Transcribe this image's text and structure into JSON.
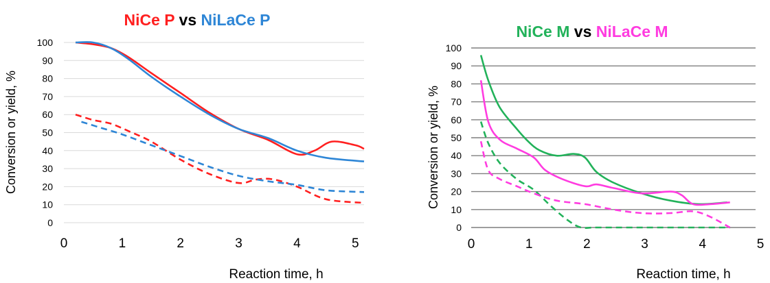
{
  "chart_data": [
    {
      "type": "line",
      "title_parts": [
        {
          "text": "NiCe P",
          "color": "#ff1f1f"
        },
        {
          "text": " vs ",
          "color": "#000000"
        },
        {
          "text": "NiLaCe P",
          "color": "#2e86d6"
        }
      ],
      "xlabel": "Reaction time, h",
      "ylabel": "Conversion or yield, %",
      "xlim": [
        0,
        5.15
      ],
      "ylim": [
        0,
        100
      ],
      "xticks": [
        "0",
        "1",
        "2",
        "3",
        "4",
        "5"
      ],
      "yticks": [
        "0",
        "10",
        "20",
        "30",
        "40",
        "50",
        "60",
        "70",
        "80",
        "90",
        "100"
      ],
      "grid": "horizontal-light",
      "series": [
        {
          "color": "#ff1f1f",
          "style": "solid",
          "x": [
            0.2,
            0.5,
            0.8,
            1.1,
            1.5,
            2.0,
            2.5,
            3.0,
            3.5,
            4.0,
            4.3,
            4.6,
            5.0,
            5.15
          ],
          "y": [
            100,
            99,
            97,
            92,
            83,
            72,
            61,
            52,
            46,
            38,
            40,
            45,
            43,
            41
          ]
        },
        {
          "color": "#2e86d6",
          "style": "solid",
          "x": [
            0.2,
            0.5,
            0.8,
            1.1,
            1.5,
            2.0,
            2.5,
            3.0,
            3.5,
            4.0,
            4.5,
            5.15
          ],
          "y": [
            100,
            100,
            97,
            91,
            81,
            70,
            60,
            52,
            47,
            40,
            36,
            34
          ]
        },
        {
          "color": "#ff1f1f",
          "style": "dashed",
          "x": [
            0.2,
            0.5,
            0.8,
            1.1,
            1.5,
            2.0,
            2.5,
            3.0,
            3.3,
            3.6,
            4.0,
            4.5,
            5.15
          ],
          "y": [
            60,
            57,
            55,
            51,
            45,
            35,
            27,
            22,
            24,
            24,
            20,
            13,
            11
          ]
        },
        {
          "color": "#2e86d6",
          "style": "dashed",
          "x": [
            0.3,
            0.6,
            1.0,
            1.5,
            2.0,
            2.5,
            3.0,
            3.5,
            4.0,
            4.5,
            5.15
          ],
          "y": [
            56,
            53,
            49,
            43,
            37,
            31,
            26,
            23,
            21,
            18,
            17
          ]
        }
      ]
    },
    {
      "type": "line",
      "title_parts": [
        {
          "text": "NiCe M",
          "color": "#22b25a"
        },
        {
          "text": " vs ",
          "color": "#000000"
        },
        {
          "text": "NiLaCe M",
          "color": "#ff3ce0"
        }
      ],
      "xlabel": "Reaction time, h",
      "ylabel": "Conversion or yield, %",
      "xlim": [
        0,
        5
      ],
      "ylim": [
        0,
        100
      ],
      "xticks": [
        "0",
        "1",
        "2",
        "3",
        "4",
        "5"
      ],
      "yticks": [
        "0",
        "10",
        "20",
        "30",
        "40",
        "50",
        "60",
        "70",
        "80",
        "90",
        "100"
      ],
      "grid": "horizontal-dark",
      "series": [
        {
          "color": "#22b25a",
          "style": "solid",
          "x": [
            0.17,
            0.3,
            0.5,
            0.8,
            1.0,
            1.2,
            1.5,
            1.8,
            2.0,
            2.2,
            2.5,
            3.0,
            3.5,
            4.0,
            4.5
          ],
          "y": [
            96,
            82,
            67,
            55,
            48,
            43,
            40,
            41,
            39,
            31,
            25,
            19,
            15,
            13,
            14
          ]
        },
        {
          "color": "#ff3ce0",
          "style": "solid",
          "x": [
            0.17,
            0.3,
            0.5,
            0.8,
            1.1,
            1.3,
            1.6,
            2.0,
            2.2,
            2.5,
            3.0,
            3.5,
            3.7,
            3.9,
            4.2,
            4.55
          ],
          "y": [
            82,
            59,
            49,
            44,
            39,
            32,
            27,
            23,
            24,
            22,
            19,
            20,
            18,
            13,
            13,
            14
          ]
        },
        {
          "color": "#22b25a",
          "style": "dashed",
          "x": [
            0.17,
            0.3,
            0.5,
            0.8,
            1.1,
            1.4,
            1.7,
            1.93,
            2.2,
            3.0,
            4.0,
            4.55
          ],
          "y": [
            59,
            47,
            36,
            27,
            21,
            12,
            4,
            0,
            0,
            0,
            0,
            0
          ]
        },
        {
          "color": "#ff3ce0",
          "style": "dashed",
          "x": [
            0.17,
            0.3,
            0.5,
            0.8,
            1.1,
            1.5,
            2.0,
            2.5,
            3.0,
            3.5,
            3.9,
            4.2,
            4.55
          ],
          "y": [
            48,
            32,
            27,
            23,
            19,
            15,
            13,
            10,
            8,
            8,
            9,
            6,
            0
          ]
        }
      ]
    }
  ]
}
